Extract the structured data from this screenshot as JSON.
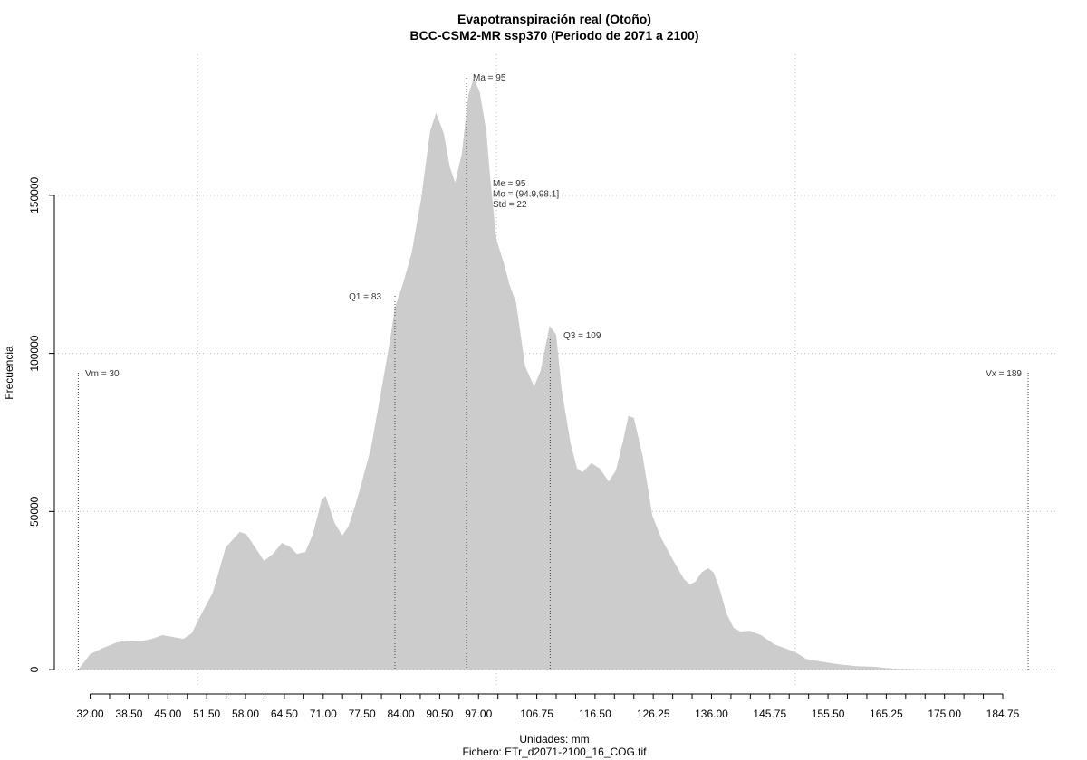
{
  "chart_data": {
    "type": "area",
    "title": "Evapotranspiración real (Otoño)",
    "subtitle": "BCC-CSM2-MR ssp370 (Periodo de 2071 a 2100)",
    "x_label": "Unidades: mm",
    "caption": "Fichero: ETr_d2071-2100_16_COG.tif",
    "y_label": "Frecuencia",
    "color": "#cccccc",
    "grid": true,
    "xlim": [
      26,
      194
    ],
    "ylim": [
      -5700,
      194600
    ],
    "yticks": [
      0,
      50000,
      100000,
      150000
    ],
    "xgrid": [
      50,
      100,
      150
    ],
    "xticks": [
      {
        "value": 32,
        "label": "32.00"
      },
      {
        "value": 38.5,
        "label": "38.50"
      },
      {
        "value": 45,
        "label": "45.00"
      },
      {
        "value": 51.5,
        "label": "51.50"
      },
      {
        "value": 58,
        "label": "58.00"
      },
      {
        "value": 64.5,
        "label": "64.50"
      },
      {
        "value": 71,
        "label": "71.00"
      },
      {
        "value": 77.5,
        "label": "77.50"
      },
      {
        "value": 84,
        "label": "84.00"
      },
      {
        "value": 90.5,
        "label": "90.50"
      },
      {
        "value": 97,
        "label": "97.00"
      },
      {
        "value": 106.75,
        "label": "106.75"
      },
      {
        "value": 116.5,
        "label": "116.50"
      },
      {
        "value": 126.25,
        "label": "126.25"
      },
      {
        "value": 136,
        "label": "136.00"
      },
      {
        "value": 145.75,
        "label": "145.75"
      },
      {
        "value": 155.5,
        "label": "155.50"
      },
      {
        "value": 165.25,
        "label": "165.25"
      },
      {
        "value": 175,
        "label": "175.00"
      },
      {
        "value": 184.75,
        "label": "184.75"
      }
    ],
    "xminor_ticks": [
      35.25,
      41.75,
      48.25,
      54.75,
      61.25,
      67.75,
      74.25,
      80.75,
      87.25,
      93.75,
      100.25,
      103.5,
      110,
      113.25,
      119.75,
      123,
      129.5,
      132.75,
      139.25,
      142.5,
      149,
      152.25,
      158.75,
      162,
      168.5,
      171.75,
      178.25,
      181.5
    ],
    "x": [
      30,
      32,
      34.2,
      36.5,
      38.3,
      40.3,
      42.3,
      44.1,
      45.9,
      47.6,
      49,
      50.5,
      52.5,
      54.7,
      57,
      58.1,
      59.6,
      61.1,
      62.6,
      64.1,
      65.4,
      66.6,
      68,
      69.3,
      70.7,
      71.4,
      72.9,
      74.2,
      75.2,
      76.3,
      77.5,
      79,
      80.5,
      82.1,
      83,
      84.3,
      85.8,
      87.4,
      88.9,
      89.9,
      91.2,
      92.2,
      93.1,
      94.2,
      95.3,
      96.2,
      97.2,
      98.3,
      99,
      100,
      101.2,
      102.2,
      103.3,
      104.8,
      106.3,
      107.4,
      108.9,
      110,
      110.9,
      112.4,
      113.5,
      114.4,
      115.9,
      117.3,
      118.8,
      120,
      121.2,
      122.1,
      123,
      124.5,
      126.1,
      127.6,
      129.4,
      131.4,
      132.4,
      133.3,
      134.4,
      135.5,
      136.4,
      137.4,
      138.5,
      139.7,
      140.9,
      142.4,
      144.3,
      146.5,
      148.5,
      150.3,
      151.8,
      154.1,
      157.2,
      160.2,
      163.2,
      166.3,
      171.6,
      177.6,
      188
    ],
    "values": [
      0,
      4900,
      6900,
      8600,
      9200,
      8900,
      9700,
      10900,
      10300,
      9700,
      11500,
      17200,
      24300,
      38700,
      43500,
      42900,
      38700,
      34400,
      36600,
      40100,
      38900,
      36600,
      37200,
      42900,
      53500,
      55000,
      46400,
      42400,
      45200,
      51500,
      59500,
      70100,
      85900,
      103100,
      114500,
      121700,
      131700,
      148900,
      170300,
      176100,
      169500,
      158900,
      154000,
      163200,
      181800,
      187000,
      182700,
      170300,
      154600,
      136000,
      128800,
      121700,
      116000,
      95900,
      89600,
      94500,
      108800,
      105900,
      88800,
      71600,
      63600,
      62400,
      65300,
      63600,
      59500,
      63000,
      72400,
      80200,
      79600,
      67300,
      48700,
      41500,
      35200,
      28600,
      26900,
      27800,
      30900,
      32100,
      30600,
      25200,
      17800,
      13200,
      12000,
      12300,
      10900,
      8000,
      6600,
      5200,
      3400,
      2600,
      1700,
      1100,
      900,
      300,
      100,
      50,
      0
    ],
    "reference_lines": [
      {
        "label": "Vm = 30",
        "value": 30
      },
      {
        "label": "Q1 = 83",
        "value": 83
      },
      {
        "label": "Ma = 95",
        "value": 95
      },
      {
        "label": "Q3 = 109",
        "value": 109
      },
      {
        "label": "Vx = 189",
        "value": 189
      }
    ],
    "stats": [
      "Me = 95",
      "Mo = (94.9,98.1]",
      "Std = 22"
    ]
  }
}
